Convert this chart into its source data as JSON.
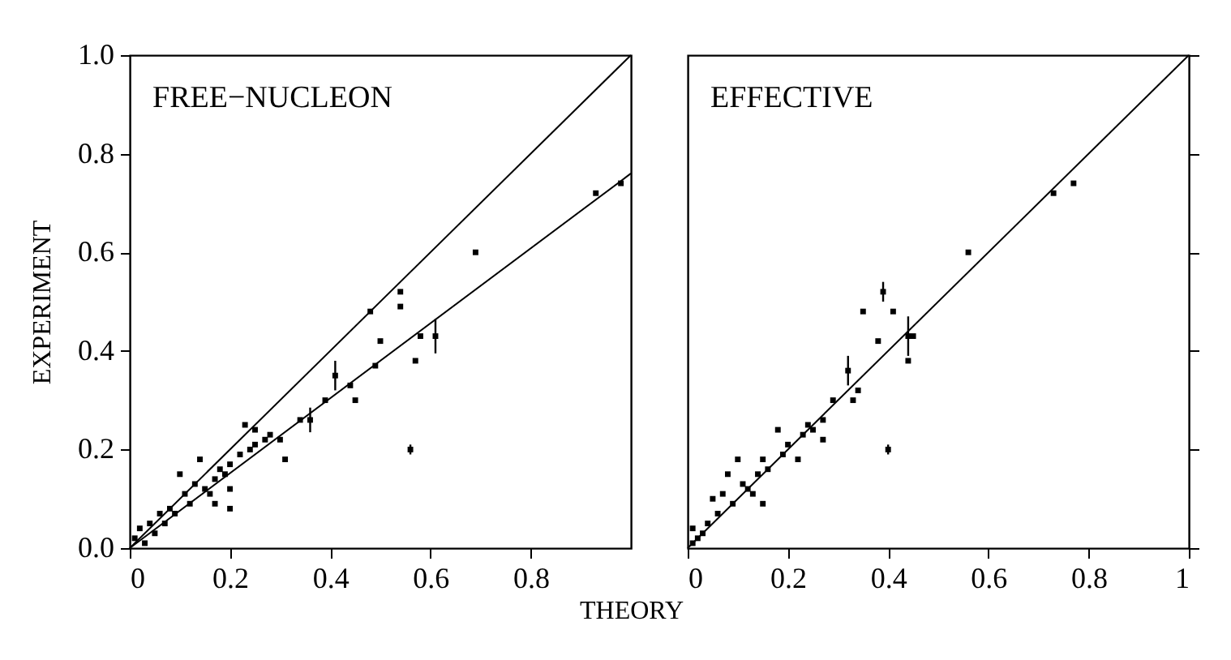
{
  "chart_data": [
    {
      "type": "scatter",
      "ylabel": "EXPERIMENT",
      "xlabel": "THEORY",
      "annotations": [
        "FREE−NUCLEON"
      ],
      "xlim": [
        0,
        1
      ],
      "xticks": [
        {
          "value": 0,
          "label": "0"
        },
        0.2,
        0.4,
        0.6,
        0.8
      ],
      "ylim": [
        0,
        1
      ],
      "yticks": [
        {
          "value": 0,
          "label": "0.0"
        },
        0.2,
        0.4,
        0.6,
        0.8,
        {
          "value": 1,
          "label": "1.0"
        }
      ],
      "series": [
        {
          "type": "scatter",
          "marker": "square",
          "color": "#000000",
          "x": [
            0.93,
            0.98,
            0.69,
            0.54,
            0.54,
            0.48,
            0.5,
            0.58,
            0.61,
            0.57,
            0.49,
            0.41,
            0.44,
            0.39,
            0.45,
            0.36,
            0.34,
            0.3,
            0.31,
            0.56,
            0.25,
            0.23,
            0.25,
            0.2,
            0.2,
            0.2,
            0.17,
            0.17,
            0.14,
            0.13,
            0.11,
            0.1,
            0.08,
            0.06,
            0.04,
            0.02,
            0.01,
            0.03,
            0.19,
            0.22,
            0.15,
            0.12,
            0.09,
            0.07,
            0.05,
            0.16,
            0.18,
            0.24,
            0.27,
            0.28
          ],
          "values": [
            0.72,
            0.74,
            0.6,
            0.52,
            0.49,
            0.48,
            0.42,
            0.43,
            0.43,
            0.38,
            0.37,
            0.35,
            0.33,
            0.3,
            0.3,
            0.26,
            0.26,
            0.22,
            0.18,
            0.2,
            0.24,
            0.25,
            0.21,
            0.17,
            0.12,
            0.08,
            0.14,
            0.09,
            0.18,
            0.13,
            0.11,
            0.15,
            0.08,
            0.07,
            0.05,
            0.04,
            0.02,
            0.01,
            0.15,
            0.19,
            0.12,
            0.09,
            0.07,
            0.05,
            0.03,
            0.11,
            0.16,
            0.2,
            0.22,
            0.23
          ],
          "errors": [
            null,
            null,
            null,
            null,
            null,
            null,
            null,
            null,
            0.035,
            null,
            null,
            0.03,
            null,
            null,
            null,
            0.025,
            null,
            null,
            null,
            0.01,
            null,
            null,
            null,
            null,
            null,
            null,
            null,
            null,
            null,
            null,
            null,
            null,
            null,
            null,
            null,
            null,
            null,
            null,
            null,
            null,
            null,
            null,
            null,
            null,
            null,
            null,
            null,
            null,
            null,
            null
          ]
        },
        {
          "type": "line",
          "color": "#000000",
          "x": [
            0,
            1
          ],
          "values": [
            0,
            1
          ]
        },
        {
          "type": "line",
          "color": "#000000",
          "x": [
            0,
            1
          ],
          "values": [
            0,
            0.76
          ]
        }
      ]
    },
    {
      "type": "scatter",
      "annotations": [
        "EFFECTIVE"
      ],
      "tick_labels": "x",
      "xlim": [
        0,
        1
      ],
      "xticks": [
        {
          "value": 0,
          "label": "0"
        },
        0.2,
        0.4,
        0.6,
        0.8,
        1
      ],
      "ylim": [
        0,
        1
      ],
      "yticks": [
        {
          "value": 0,
          "label": null
        },
        {
          "value": 0.2,
          "label": null
        },
        {
          "value": 0.4,
          "label": null
        },
        {
          "value": 0.6,
          "label": null
        },
        {
          "value": 0.8,
          "label": null
        },
        {
          "value": 1,
          "label": null
        }
      ],
      "series": [
        {
          "type": "scatter",
          "marker": "square",
          "color": "#000000",
          "x": [
            0.73,
            0.77,
            0.56,
            0.39,
            0.41,
            0.35,
            0.38,
            0.44,
            0.45,
            0.44,
            0.32,
            0.34,
            0.33,
            0.29,
            0.27,
            0.27,
            0.23,
            0.18,
            0.22,
            0.4,
            0.1,
            0.15,
            0.14,
            0.15,
            0.08,
            0.05,
            0.06,
            0.01,
            0.01,
            0.11,
            0.07,
            0.12,
            0.09,
            0.04,
            0.03,
            0.16,
            0.19,
            0.2,
            0.13,
            0.02,
            0.24,
            0.25
          ],
          "values": [
            0.72,
            0.74,
            0.6,
            0.52,
            0.48,
            0.48,
            0.42,
            0.43,
            0.43,
            0.38,
            0.36,
            0.32,
            0.3,
            0.3,
            0.26,
            0.22,
            0.23,
            0.24,
            0.18,
            0.2,
            0.18,
            0.18,
            0.15,
            0.09,
            0.15,
            0.1,
            0.07,
            0.04,
            0.01,
            0.13,
            0.11,
            0.12,
            0.09,
            0.05,
            0.03,
            0.16,
            0.19,
            0.21,
            0.11,
            0.02,
            0.25,
            0.24
          ],
          "errors": [
            null,
            null,
            null,
            0.02,
            null,
            null,
            null,
            0.04,
            null,
            null,
            0.03,
            null,
            null,
            null,
            null,
            null,
            null,
            null,
            null,
            0.01,
            null,
            null,
            null,
            null,
            null,
            null,
            null,
            null,
            null,
            null,
            null,
            null,
            null,
            null,
            null,
            null,
            null,
            null,
            null,
            null,
            null,
            null
          ]
        },
        {
          "type": "line",
          "color": "#000000",
          "x": [
            0,
            1
          ],
          "values": [
            0,
            1
          ]
        }
      ]
    }
  ]
}
